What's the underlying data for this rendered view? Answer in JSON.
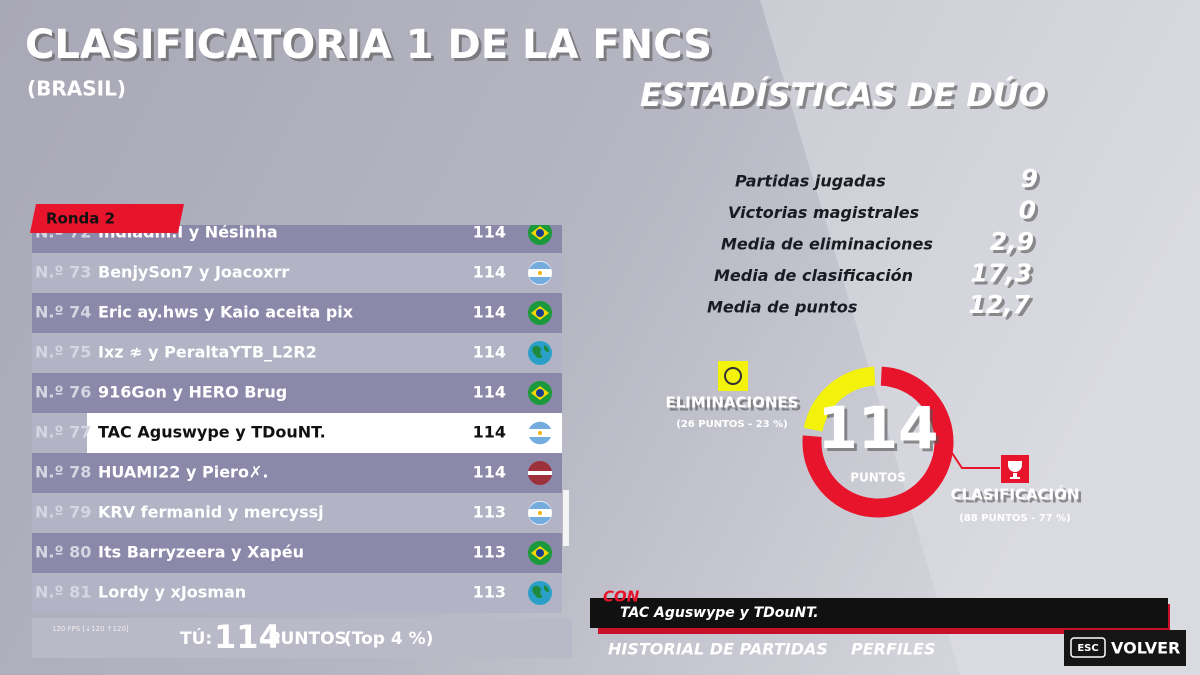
{
  "header": {
    "title": "CLASIFICATORIA 1 DE LA FNCS",
    "subtitle": "(BRASIL)"
  },
  "stats": {
    "title": "ESTADÍSTICAS DE DÚO",
    "items": [
      {
        "label": "Partidas jugadas",
        "value": "9"
      },
      {
        "label": "Victorias magistrales",
        "value": "0"
      },
      {
        "label": "Media de eliminaciones",
        "value": "2,9"
      },
      {
        "label": "Media de clasificación",
        "value": "17,3"
      },
      {
        "label": "Media de puntos",
        "value": "12,7"
      }
    ]
  },
  "leaderboard": {
    "tab": "Ronda 2",
    "rows": [
      {
        "rank": "N.º 72",
        "name": "Indiadm.I y Nésinha",
        "points": "114"
      },
      {
        "rank": "N.º 73",
        "name": "BenjySon7 y Joacoxrr",
        "points": "114"
      },
      {
        "rank": "N.º 74",
        "name": "Eric ay.hws y Kaio aceita pix",
        "points": "114"
      },
      {
        "rank": "N.º 75",
        "name": "Ixz ≉ y PeraltaYTB_L2R2",
        "points": "114"
      },
      {
        "rank": "N.º 76",
        "name": "916Gon y HERO Brug",
        "points": "114"
      },
      {
        "rank": "N.º 77",
        "name": "TAC Aguswype y TDouNT.",
        "points": "114"
      },
      {
        "rank": "N.º 78",
        "name": "HUAMI22 y Piero✗.",
        "points": "114"
      },
      {
        "rank": "N.º 79",
        "name": "KRV fermanid y mercyssj",
        "points": "113"
      },
      {
        "rank": "N.º 80",
        "name": "Its Barryzeera y Xapéu",
        "points": "113"
      },
      {
        "rank": "N.º 81",
        "name": "Lordy y xJosman",
        "points": "113"
      }
    ],
    "footer": {
      "fps": "120 FPS [↓120 ↑120]",
      "you": "TÚ:",
      "points": "114",
      "unit": "PUNTOS",
      "top": "(Top 4 %)"
    }
  },
  "donut": {
    "total": "114",
    "unit": "PUNTOS",
    "segments": [
      {
        "name": "CLASIFICACIÓN",
        "value": 88,
        "label": "(88 PUNTOS - 77 %)",
        "color": "#e8142c"
      },
      {
        "name": "ELIMINACIONES",
        "value": 26,
        "label": "(26 PUNTOS - 23 %)",
        "color": "#f2f20a"
      }
    ]
  },
  "partner": {
    "prefix": "CON",
    "name": "TAC Aguswype y TDouNT."
  },
  "nav": {
    "history": "HISTORIAL DE PARTIDAS",
    "profiles": "PERFILES",
    "key": "ESC",
    "back": "VOLVER"
  }
}
